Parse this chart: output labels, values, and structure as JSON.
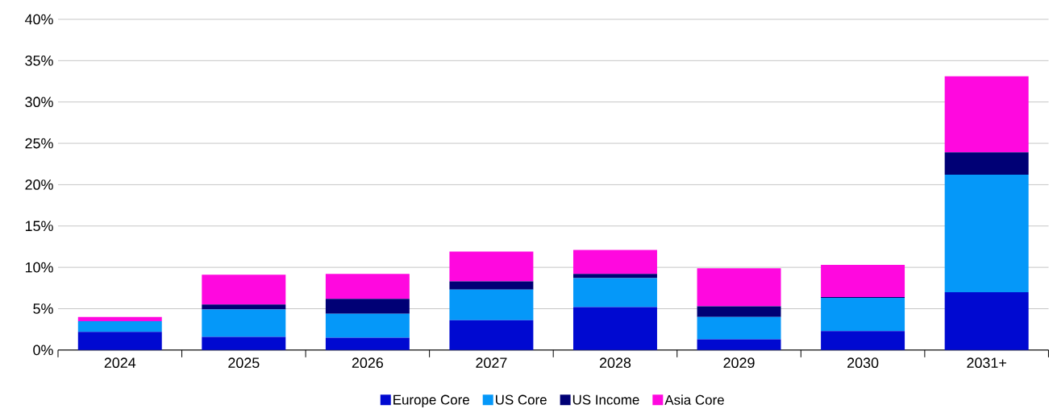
{
  "chart_data": {
    "type": "bar",
    "stacked": true,
    "categories": [
      "2024",
      "2025",
      "2026",
      "2027",
      "2028",
      "2029",
      "2030",
      "2031+"
    ],
    "series": [
      {
        "name": "Europe Core",
        "color": "#0009d1",
        "values": [
          2.2,
          1.6,
          1.5,
          3.6,
          5.2,
          1.3,
          2.3,
          7.0
        ]
      },
      {
        "name": "US Core",
        "color": "#0598f9",
        "values": [
          1.3,
          3.3,
          2.9,
          3.7,
          3.5,
          2.7,
          4.0,
          14.2
        ]
      },
      {
        "name": "US Income",
        "color": "#000075",
        "values": [
          0.0,
          0.6,
          1.8,
          1.0,
          0.5,
          1.3,
          0.1,
          2.7
        ]
      },
      {
        "name": "Asia Core",
        "color": "#ff08df",
        "values": [
          0.5,
          3.6,
          3.0,
          3.6,
          2.9,
          4.6,
          3.9,
          9.2
        ]
      }
    ],
    "ylim": [
      0,
      40
    ],
    "yticks": [
      {
        "value": 0,
        "label": "0%"
      },
      {
        "value": 5,
        "label": "5%"
      },
      {
        "value": 10,
        "label": "10%"
      },
      {
        "value": 15,
        "label": "15%"
      },
      {
        "value": 20,
        "label": "20%"
      },
      {
        "value": 25,
        "label": "25%"
      },
      {
        "value": 30,
        "label": "30%"
      },
      {
        "value": 35,
        "label": "35%"
      },
      {
        "value": 40,
        "label": "40%"
      }
    ],
    "grid": "y",
    "legend": "bottom"
  }
}
